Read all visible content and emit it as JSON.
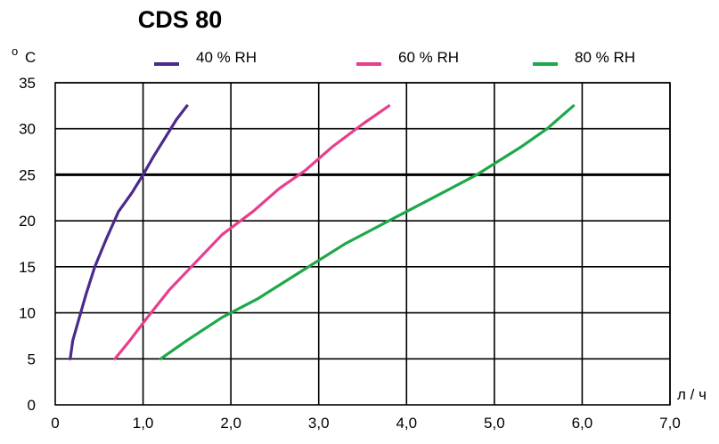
{
  "chart_data": {
    "type": "line",
    "title": "CDS 80",
    "ylabel_sup": "o",
    "ylabel": "C",
    "xlabel": "л / ч",
    "xlim": [
      0,
      7
    ],
    "ylim": [
      0,
      35
    ],
    "x_ticks": [
      "0",
      "1,0",
      "2,0",
      "3,0",
      "4,0",
      "5,0",
      "6,0",
      "7,0"
    ],
    "x_tick_values": [
      0,
      1,
      2,
      3,
      4,
      5,
      6,
      7
    ],
    "y_ticks": [
      "0",
      "5",
      "10",
      "15",
      "20",
      "25",
      "30",
      "35"
    ],
    "y_tick_values": [
      0,
      5,
      10,
      15,
      20,
      25,
      30,
      35
    ],
    "grid": true,
    "reference_line_y": 25,
    "legend_position": "top",
    "series": [
      {
        "name": "40 % RH",
        "color": "#4b2a8c",
        "points": [
          [
            0.17,
            5
          ],
          [
            0.2,
            7
          ],
          [
            0.26,
            9
          ],
          [
            0.35,
            12
          ],
          [
            0.45,
            15
          ],
          [
            0.58,
            18
          ],
          [
            0.72,
            21
          ],
          [
            0.87,
            23
          ],
          [
            1.0,
            25
          ],
          [
            1.12,
            27
          ],
          [
            1.25,
            29
          ],
          [
            1.38,
            31
          ],
          [
            1.5,
            32.5
          ]
        ]
      },
      {
        "name": "60 % RH",
        "color": "#e83e8c",
        "points": [
          [
            0.68,
            5
          ],
          [
            0.85,
            7
          ],
          [
            1.05,
            9.5
          ],
          [
            1.3,
            12.5
          ],
          [
            1.6,
            15.5
          ],
          [
            1.9,
            18.5
          ],
          [
            2.25,
            21
          ],
          [
            2.55,
            23.5
          ],
          [
            2.85,
            25.5
          ],
          [
            3.15,
            28
          ],
          [
            3.5,
            30.5
          ],
          [
            3.8,
            32.5
          ]
        ]
      },
      {
        "name": "80 % RH",
        "color": "#1ea84a",
        "points": [
          [
            1.2,
            5
          ],
          [
            1.5,
            7
          ],
          [
            1.9,
            9.5
          ],
          [
            2.3,
            11.5
          ],
          [
            2.8,
            14.5
          ],
          [
            3.3,
            17.5
          ],
          [
            3.8,
            20
          ],
          [
            4.3,
            22.5
          ],
          [
            4.8,
            25
          ],
          [
            5.3,
            28
          ],
          [
            5.6,
            30
          ],
          [
            5.9,
            32.5
          ]
        ]
      }
    ]
  }
}
